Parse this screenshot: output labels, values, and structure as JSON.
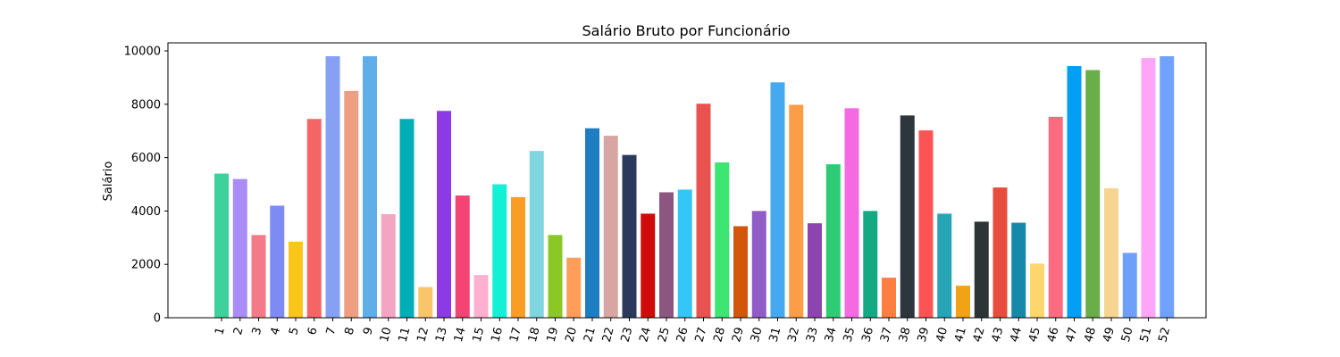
{
  "chart_data": {
    "type": "bar",
    "title": "Salário Bruto por Funcionário",
    "xlabel": "",
    "ylabel": "Salário",
    "ylim": [
      0,
      10000
    ],
    "yticks": [
      0,
      2000,
      4000,
      6000,
      8000,
      10000
    ],
    "grid": false,
    "categories": [
      "1",
      "2",
      "3",
      "4",
      "5",
      "6",
      "7",
      "8",
      "9",
      "10",
      "11",
      "12",
      "13",
      "14",
      "15",
      "16",
      "17",
      "18",
      "19",
      "20",
      "21",
      "22",
      "23",
      "24",
      "25",
      "26",
      "27",
      "28",
      "29",
      "30",
      "31",
      "32",
      "33",
      "34",
      "35",
      "36",
      "37",
      "38",
      "39",
      "40",
      "41",
      "42",
      "43",
      "44",
      "45",
      "46",
      "47",
      "48",
      "49",
      "50",
      "51",
      "52"
    ],
    "values": [
      5400,
      5200,
      3100,
      4200,
      2850,
      7450,
      9800,
      8500,
      9800,
      3880,
      7450,
      1150,
      7750,
      4580,
      1600,
      5000,
      4520,
      6250,
      3100,
      2250,
      7100,
      6820,
      6100,
      3900,
      4700,
      4800,
      8020,
      5820,
      3430,
      4000,
      8820,
      7980,
      3540,
      5750,
      7850,
      4000,
      1500,
      7580,
      7020,
      3900,
      1200,
      3600,
      4880,
      3560,
      2030,
      7530,
      9430,
      9280,
      4850,
      2430,
      9730,
      9800
    ],
    "colors": [
      "#3dd19b",
      "#a98cf5",
      "#f57a88",
      "#7f8bf5",
      "#fac61a",
      "#f66565",
      "#86a0f4",
      "#ee9f82",
      "#5faeea",
      "#f4a5c1",
      "#00aeb5",
      "#f9c56b",
      "#8b3ae6",
      "#f34474",
      "#ffafd0",
      "#14f0d6",
      "#f99d24",
      "#80d6df",
      "#8bc725",
      "#fe9e58",
      "#1f7ec2",
      "#d7a6a2",
      "#2b3a5c",
      "#d00b0b",
      "#8d5681",
      "#34c6f6",
      "#e8534f",
      "#3de573",
      "#d4550c",
      "#905cc8",
      "#46a9ef",
      "#fe9d48",
      "#8d44ae",
      "#2ecb75",
      "#f46ae0",
      "#13a983",
      "#fe7d41",
      "#2d353d",
      "#fe5353",
      "#27a5b7",
      "#f2a215",
      "#2d3436",
      "#e74c3c",
      "#1689ab",
      "#fed66e",
      "#fe6b81",
      "#039ff5",
      "#6aae4a",
      "#f6d591",
      "#6fa0f9",
      "#fea5f7",
      "#70a1fe"
    ]
  }
}
